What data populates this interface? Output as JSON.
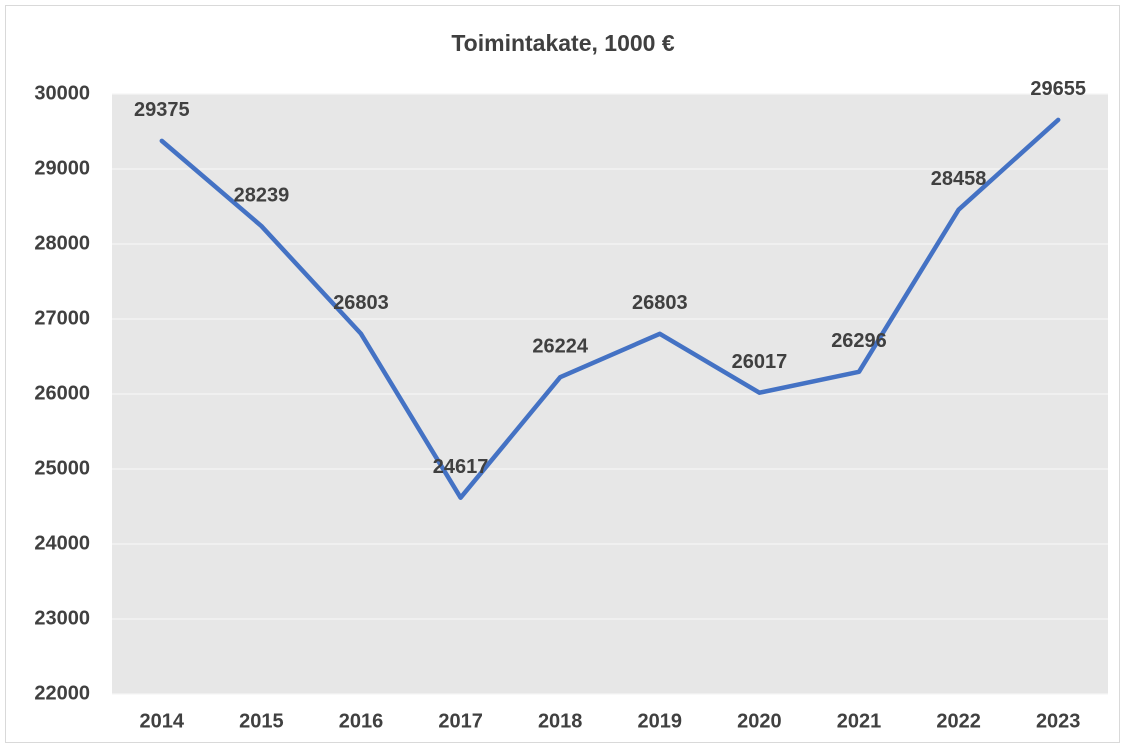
{
  "chart_data": {
    "type": "line",
    "title": "Toimintakate, 1000 €",
    "categories": [
      "2014",
      "2015",
      "2016",
      "2017",
      "2018",
      "2019",
      "2020",
      "2021",
      "2022",
      "2023"
    ],
    "series": [
      {
        "name": "Toimintakate",
        "color": "#4472c4",
        "values": [
          29375,
          28239,
          26803,
          24617,
          26224,
          26803,
          26017,
          26296,
          28458,
          29655
        ]
      }
    ],
    "ylim": [
      22000,
      30000
    ],
    "yticks": [
      22000,
      23000,
      24000,
      25000,
      26000,
      27000,
      28000,
      29000,
      30000
    ],
    "grid": true,
    "data_labels": true,
    "legend": false
  }
}
